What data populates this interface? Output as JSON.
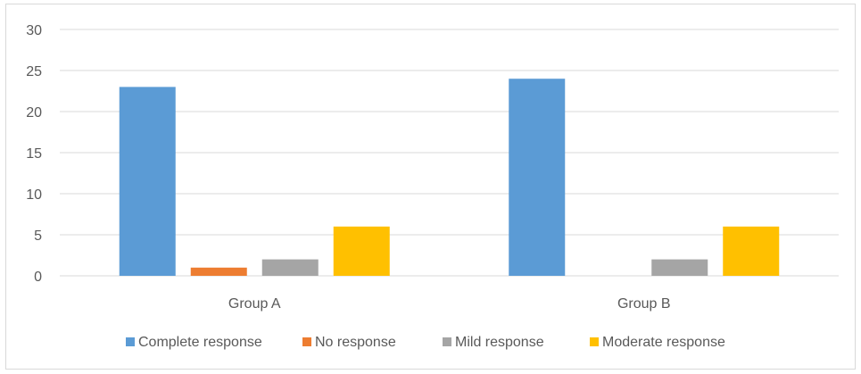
{
  "chart_data": {
    "type": "bar",
    "categories": [
      "Group A",
      "Group B"
    ],
    "series": [
      {
        "name": "Complete response",
        "color": "#5b9bd5",
        "values": [
          23,
          24
        ]
      },
      {
        "name": "No response",
        "color": "#ed7d31",
        "values": [
          1,
          0
        ]
      },
      {
        "name": "Mild response",
        "color": "#a5a5a5",
        "values": [
          2,
          2
        ]
      },
      {
        "name": "Moderate response",
        "color": "#ffc000",
        "values": [
          6,
          6
        ]
      }
    ],
    "yticks": [
      "0",
      "5",
      "10",
      "15",
      "20",
      "25",
      "30"
    ],
    "ylim": [
      0,
      30
    ],
    "grid": true,
    "legend_position": "bottom",
    "title": "",
    "xlabel": "",
    "ylabel": ""
  }
}
